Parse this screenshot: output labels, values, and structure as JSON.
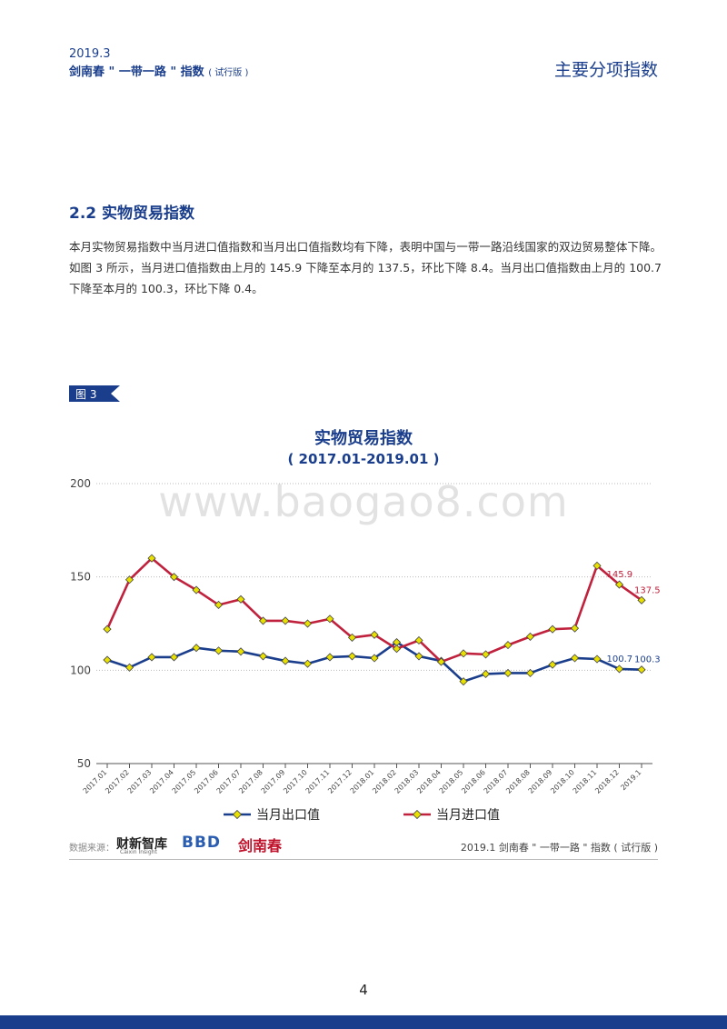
{
  "header": {
    "year": "2019.3",
    "subtitle": "剑南春 \" 一带一路 \" 指数",
    "subtitle_small": "( 试行版 )",
    "section": "主要分项指数"
  },
  "section": {
    "title": "2.2 实物贸易指数",
    "paragraph": "本月实物贸易指数中当月进口值指数和当月出口值指数均有下降，表明中国与一带一路沿线国家的双边贸易整体下降。如图 3 所示，当月进口值指数由上月的 145.9 下降至本月的 137.5，环比下降 8.4。当月出口值指数由上月的 100.7 下降至本月的 100.3，环比下降 0.4。"
  },
  "figure": {
    "tag": "图 3",
    "watermark": "www.baogao8.com"
  },
  "chart_data": {
    "type": "line",
    "title": "实物贸易指数",
    "subtitle": "( 2017.01-2019.01 )",
    "xlabel": "",
    "ylabel": "",
    "ylim": [
      50,
      200
    ],
    "yticks": [
      50,
      100,
      150,
      200
    ],
    "grid": true,
    "legend_position": "bottom",
    "categories": [
      "2017.01",
      "2017.02",
      "2017.03",
      "2017.04",
      "2017.05",
      "2017.06",
      "2017.07",
      "2017.08",
      "2017.09",
      "2017.10",
      "2017.11",
      "2017.12",
      "2018.01",
      "2018.02",
      "2018.03",
      "2018.04",
      "2018.05",
      "2018.06",
      "2018.07",
      "2018.08",
      "2018.09",
      "2018.10",
      "2018.11",
      "2018.12",
      "2019.1"
    ],
    "series": [
      {
        "name": "当月出口值",
        "color": "#1a3e8c",
        "values": [
          105.5,
          101.5,
          107,
          107,
          112,
          110.5,
          110,
          107.5,
          105,
          103.5,
          107,
          107.5,
          106.5,
          115,
          107.5,
          105,
          94,
          98,
          98.5,
          98.5,
          103,
          106.5,
          106,
          100.7,
          100.3
        ],
        "labels": {
          "23": "100.7",
          "24": "100.3"
        }
      },
      {
        "name": "当月进口值",
        "color": "#c0213c",
        "values": [
          122,
          148.5,
          160,
          150,
          143,
          135,
          138,
          126.5,
          126.5,
          125,
          127.5,
          117.5,
          119,
          111.5,
          116,
          104.5,
          109,
          108.5,
          113.5,
          118,
          122,
          122.5,
          156,
          145.9,
          137.5
        ],
        "labels": {
          "23": "145.9",
          "24": "137.5"
        }
      }
    ]
  },
  "footer": {
    "source_label": "数据来源：",
    "logo_caixin": "财新智库",
    "logo_caixin_en": "Caixin Insight",
    "logo_bbd": "BBD",
    "logo_jnc": "剑南春",
    "source_right": "2019.1  剑南春 \" 一带一路 \" 指数 ( 试行版 )",
    "page_number": "4"
  }
}
